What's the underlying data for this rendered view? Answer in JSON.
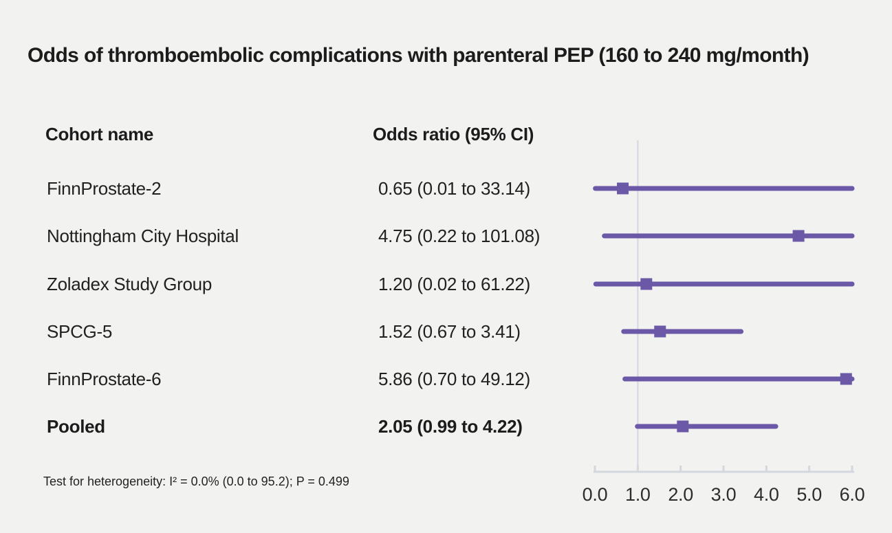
{
  "title": "Odds of thromboembolic complications with parenteral PEP (160 to 240 mg/month)",
  "columns": {
    "cohort": "Cohort name",
    "odds_ratio": "Odds ratio (95% CI)"
  },
  "footnote": "Test for heterogeneity: I² = 0.0% (0.0 to 95.2); P = 0.499",
  "chart_data": {
    "type": "forest",
    "title": "Odds of thromboembolic complications with parenteral PEP (160 to 240 mg/month)",
    "xlabel": "",
    "ylabel": "",
    "xlim": [
      0.0,
      6.0
    ],
    "x_ticks": [
      0.0,
      1.0,
      2.0,
      3.0,
      4.0,
      5.0,
      6.0
    ],
    "x_tick_labels": [
      "0.0",
      "1.0",
      "2.0",
      "3.0",
      "4.0",
      "5.0",
      "6.0"
    ],
    "reference_line_x": 1.0,
    "grid": false,
    "legend": "none",
    "colors": {
      "marker": "#6B59A8",
      "ci_line": "#6B59A8",
      "reference_line": "#D8DBE3",
      "axis": "#D3D7DE",
      "background": "#F2F2F1"
    },
    "rows": [
      {
        "cohort": "FinnProstate-2",
        "or_label": "0.65 (0.01 to 33.14)",
        "or": 0.65,
        "ci_low": 0.01,
        "ci_high": 33.14,
        "bold": false
      },
      {
        "cohort": "Nottingham City Hospital",
        "or_label": "4.75 (0.22 to 101.08)",
        "or": 4.75,
        "ci_low": 0.22,
        "ci_high": 101.08,
        "bold": false
      },
      {
        "cohort": "Zoladex Study Group",
        "or_label": "1.20 (0.02 to 61.22)",
        "or": 1.2,
        "ci_low": 0.02,
        "ci_high": 61.22,
        "bold": false
      },
      {
        "cohort": "SPCG-5",
        "or_label": "1.52 (0.67 to 3.41)",
        "or": 1.52,
        "ci_low": 0.67,
        "ci_high": 3.41,
        "bold": false
      },
      {
        "cohort": "FinnProstate-6",
        "or_label": "5.86 (0.70 to 49.12)",
        "or": 5.86,
        "ci_low": 0.7,
        "ci_high": 49.12,
        "bold": false
      },
      {
        "cohort": "Pooled",
        "or_label": "2.05 (0.99 to 4.22)",
        "or": 2.05,
        "ci_low": 0.99,
        "ci_high": 4.22,
        "bold": true
      }
    ]
  }
}
